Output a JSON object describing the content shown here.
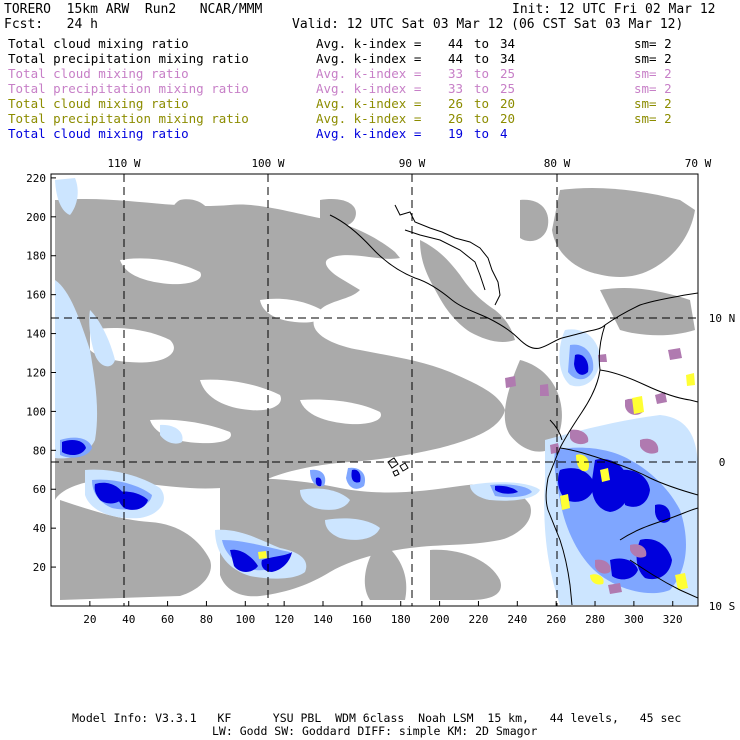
{
  "header": {
    "model": "TORERO",
    "resolution": "15km ARW",
    "run": "Run2",
    "org": "NCAR/MMM",
    "init": "Init: 12 UTC Fri 02 Mar 12",
    "fcst_label": "Fcst:",
    "fcst_value": "24 h",
    "valid": "Valid: 12 UTC Sat 03 Mar 12 (06 CST Sat 03 Mar 12)"
  },
  "legend_rows": [
    {
      "field": "Total cloud mixing ratio",
      "avg": "Avg. k-index =",
      "k_from": "44",
      "to": "to",
      "k_to": "34",
      "sm": "sm= 2",
      "color": "#000000"
    },
    {
      "field": "Total precipitation mixing ratio",
      "avg": "Avg. k-index =",
      "k_from": "44",
      "to": "to",
      "k_to": "34",
      "sm": "sm= 2",
      "color": "#000000"
    },
    {
      "field": "Total cloud mixing ratio",
      "avg": "Avg. k-index =",
      "k_from": "33",
      "to": "to",
      "k_to": "25",
      "sm": "sm= 2",
      "color": "#c77fc7"
    },
    {
      "field": "Total precipitation mixing ratio",
      "avg": "Avg. k-index =",
      "k_from": "33",
      "to": "to",
      "k_to": "25",
      "sm": "sm= 2",
      "color": "#c77fc7"
    },
    {
      "field": "Total cloud mixing ratio",
      "avg": "Avg. k-index =",
      "k_from": "26",
      "to": "to",
      "k_to": "20",
      "sm": "sm= 2",
      "color": "#8c8c00"
    },
    {
      "field": "Total precipitation mixing ratio",
      "avg": "Avg. k-index =",
      "k_from": "26",
      "to": "to",
      "k_to": "20",
      "sm": "sm= 2",
      "color": "#8c8c00"
    },
    {
      "field": "Total cloud mixing ratio",
      "avg": "Avg. k-index =",
      "k_from": "19",
      "to": "to",
      "k_to": "4",
      "sm": "",
      "color": "#0000dd"
    }
  ],
  "map": {
    "top_lon_labels": [
      "110 W",
      "100 W",
      "90 W",
      "80 W",
      "70 W"
    ],
    "right_lat_labels": [
      "10 N",
      "0",
      "10 S"
    ],
    "y_ticks": [
      "20",
      "40",
      "60",
      "80",
      "100",
      "120",
      "140",
      "160",
      "180",
      "200",
      "220"
    ],
    "x_ticks": [
      "20",
      "40",
      "60",
      "80",
      "100",
      "120",
      "140",
      "160",
      "180",
      "200",
      "220",
      "240",
      "260",
      "280",
      "300",
      "320"
    ],
    "colors": {
      "gray": "#aaaaaa",
      "light_blue": "#cce5ff",
      "mid_blue": "#7fa6ff",
      "dark_blue": "#0000dd",
      "purple": "#b07ab0",
      "yellow": "#ffff33"
    }
  },
  "footer": {
    "line1": "Model Info: V3.3.1   KF      YSU PBL  WDM 6class  Noah LSM  15 km,   44 levels,   45 sec",
    "line2": "LW: Godd SW: Goddard DIFF: simple KM: 2D Smagor"
  }
}
